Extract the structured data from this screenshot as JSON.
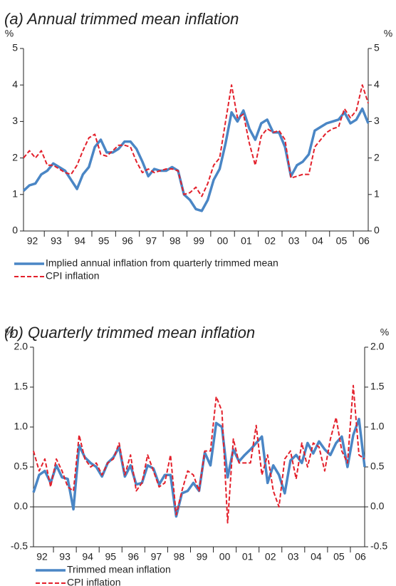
{
  "chart_data": [
    {
      "type": "line",
      "title": "(a) Annual trimmed mean inflation",
      "ylabel": "%",
      "categories": [
        null,
        "92",
        null,
        null,
        null,
        "93",
        null,
        null,
        null,
        "94",
        null,
        null,
        null,
        "95",
        null,
        null,
        null,
        "96",
        null,
        null,
        null,
        "97",
        null,
        null,
        null,
        "98",
        null,
        null,
        null,
        "99",
        null,
        null,
        null,
        "00",
        null,
        null,
        null,
        "01",
        null,
        null,
        null,
        "02",
        null,
        null,
        null,
        "03",
        null,
        null,
        null,
        "04",
        null,
        null,
        null,
        "05",
        null,
        null,
        null,
        "06",
        null
      ],
      "ylim": [
        0,
        5
      ],
      "yticks": [
        0,
        1,
        2,
        3,
        4,
        5
      ],
      "series": [
        {
          "name": "Implied annual inflation from quarterly trimmed mean",
          "color": "#4a86c5",
          "style": "solid",
          "values": [
            1.1,
            1.25,
            1.3,
            1.55,
            1.65,
            1.85,
            1.75,
            1.65,
            1.4,
            1.15,
            1.55,
            1.75,
            2.3,
            2.5,
            2.15,
            2.15,
            2.25,
            2.45,
            2.45,
            2.25,
            1.9,
            1.5,
            1.7,
            1.65,
            1.65,
            1.75,
            1.65,
            1.0,
            0.85,
            0.6,
            0.55,
            0.85,
            1.4,
            1.7,
            2.4,
            3.25,
            3.0,
            3.3,
            2.8,
            2.5,
            2.95,
            3.05,
            2.7,
            2.7,
            2.3,
            1.5,
            1.8,
            1.9,
            2.1,
            2.75,
            2.85,
            2.95,
            3.0,
            3.05,
            3.25,
            2.95,
            3.05,
            3.35,
            2.95
          ]
        },
        {
          "name": "CPI inflation",
          "color": "#e3202b",
          "style": "dashed",
          "values": [
            2.0,
            2.2,
            2.0,
            2.2,
            1.8,
            1.8,
            1.7,
            1.6,
            1.55,
            1.8,
            2.2,
            2.55,
            2.65,
            2.1,
            2.05,
            2.2,
            2.35,
            2.35,
            2.3,
            1.9,
            1.6,
            1.7,
            1.6,
            1.65,
            1.7,
            1.7,
            1.65,
            1.0,
            1.05,
            1.2,
            0.95,
            1.3,
            1.8,
            2.0,
            3.0,
            4.0,
            3.1,
            3.2,
            2.4,
            1.8,
            2.6,
            2.8,
            2.7,
            2.75,
            2.5,
            1.45,
            1.5,
            1.55,
            1.55,
            2.3,
            2.5,
            2.7,
            2.8,
            2.85,
            3.35,
            3.1,
            3.3,
            4.0,
            3.5
          ]
        }
      ]
    },
    {
      "type": "line",
      "title": "(b) Quarterly trimmed mean inflation",
      "ylabel": "%",
      "categories": [
        null,
        "92",
        null,
        null,
        null,
        "93",
        null,
        null,
        null,
        "94",
        null,
        null,
        null,
        "95",
        null,
        null,
        null,
        "96",
        null,
        null,
        null,
        "97",
        null,
        null,
        null,
        "98",
        null,
        null,
        null,
        "99",
        null,
        null,
        null,
        "00",
        null,
        null,
        null,
        "01",
        null,
        null,
        null,
        "02",
        null,
        null,
        null,
        "03",
        null,
        null,
        null,
        "04",
        null,
        null,
        null,
        "05",
        null,
        null,
        null,
        "06",
        null
      ],
      "ylim": [
        -0.5,
        2
      ],
      "yticks": [
        -0.5,
        {
          "value": 0,
          "label": "0.0"
        },
        0.5,
        {
          "value": 1,
          "label": "1.0"
        },
        1.5,
        {
          "value": 2,
          "label": "2.0"
        }
      ],
      "series": [
        {
          "name": "Trimmed mean inflation",
          "color": "#4a86c5",
          "style": "solid",
          "values": [
            0.18,
            0.4,
            0.45,
            0.3,
            0.52,
            0.37,
            0.35,
            -0.03,
            0.77,
            0.62,
            0.55,
            0.5,
            0.38,
            0.55,
            0.62,
            0.75,
            0.38,
            0.52,
            0.28,
            0.3,
            0.52,
            0.48,
            0.28,
            0.4,
            0.4,
            -0.12,
            0.17,
            0.2,
            0.3,
            0.2,
            0.68,
            0.52,
            1.05,
            1.0,
            0.37,
            0.72,
            0.57,
            0.65,
            0.72,
            0.8,
            0.88,
            0.3,
            0.52,
            0.4,
            0.17,
            0.58,
            0.65,
            0.55,
            0.8,
            0.67,
            0.82,
            0.72,
            0.65,
            0.8,
            0.88,
            0.5,
            0.9,
            1.1,
            0.5
          ]
        },
        {
          "name": "CPI inflation",
          "color": "#e3202b",
          "style": "dashed",
          "values": [
            0.7,
            0.45,
            0.6,
            0.25,
            0.6,
            0.45,
            0.25,
            0.2,
            0.9,
            0.6,
            0.5,
            0.55,
            0.4,
            0.55,
            0.6,
            0.8,
            0.4,
            0.65,
            0.2,
            0.3,
            0.65,
            0.45,
            0.25,
            0.3,
            0.65,
            -0.1,
            0.2,
            0.45,
            0.4,
            0.2,
            0.7,
            0.7,
            1.38,
            1.2,
            -0.2,
            0.85,
            0.55,
            0.55,
            0.55,
            1.02,
            0.4,
            0.65,
            0.2,
            0.0,
            0.6,
            0.7,
            0.35,
            0.8,
            0.5,
            0.8,
            0.75,
            0.45,
            0.85,
            1.12,
            0.7,
            0.55,
            1.52,
            0.65,
            0.6
          ]
        }
      ]
    }
  ]
}
